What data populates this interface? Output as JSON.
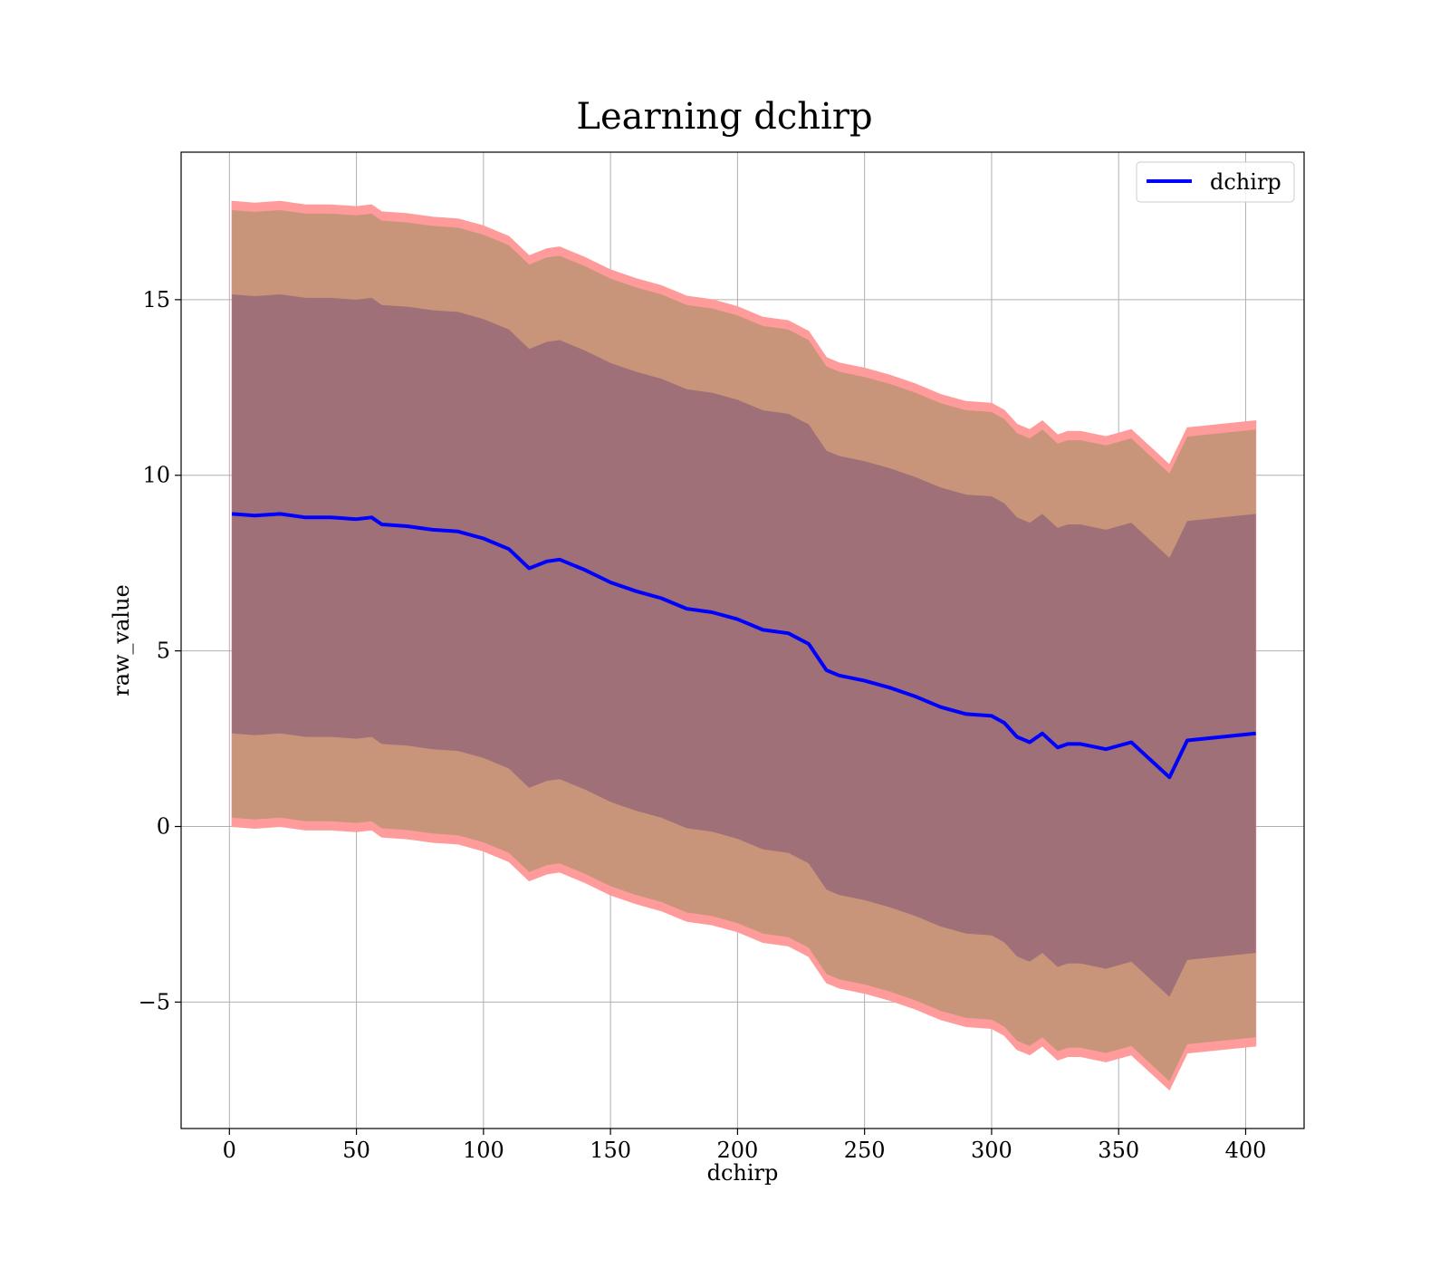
{
  "chart_data": {
    "type": "area",
    "title": "Learning dchirp",
    "xlabel": "dchirp",
    "ylabel": "raw_value",
    "xlim": [
      -19,
      423
    ],
    "ylim": [
      -8.6,
      19.2
    ],
    "xticks": [
      0,
      50,
      100,
      150,
      200,
      250,
      300,
      350,
      400
    ],
    "yticks": [
      -5,
      0,
      5,
      10,
      15
    ],
    "grid": true,
    "legend_position": "top-right",
    "colors": {
      "mean_line": "#0000ff",
      "band_outer": "#ff9b9b",
      "band_middle": "#c8957a",
      "band_inner": "#a07078"
    },
    "series": [
      {
        "name": "dchirp",
        "x": [
          1,
          10,
          20,
          30,
          40,
          50,
          56,
          60,
          70,
          80,
          90,
          100,
          110,
          118,
          125,
          130,
          140,
          150,
          160,
          170,
          180,
          190,
          200,
          210,
          220,
          228,
          235,
          240,
          250,
          260,
          270,
          280,
          290,
          300,
          305,
          310,
          315,
          320,
          326,
          330,
          335,
          345,
          355,
          370,
          377,
          404
        ],
        "y": [
          8.9,
          8.85,
          8.9,
          8.8,
          8.8,
          8.75,
          8.8,
          8.6,
          8.55,
          8.45,
          8.4,
          8.2,
          7.9,
          7.35,
          7.55,
          7.6,
          7.3,
          6.95,
          6.7,
          6.5,
          6.2,
          6.1,
          5.9,
          5.6,
          5.5,
          5.2,
          4.45,
          4.3,
          4.15,
          3.95,
          3.7,
          3.4,
          3.2,
          3.15,
          2.95,
          2.55,
          2.4,
          2.65,
          2.25,
          2.35,
          2.35,
          2.2,
          2.4,
          1.4,
          2.45,
          2.65
        ]
      }
    ],
    "bands": [
      {
        "offset_lower": -8.9,
        "offset_upper": 8.9
      },
      {
        "offset_lower": -8.65,
        "offset_upper": 8.65
      },
      {
        "offset_lower": -6.25,
        "offset_upper": 6.25
      }
    ]
  }
}
